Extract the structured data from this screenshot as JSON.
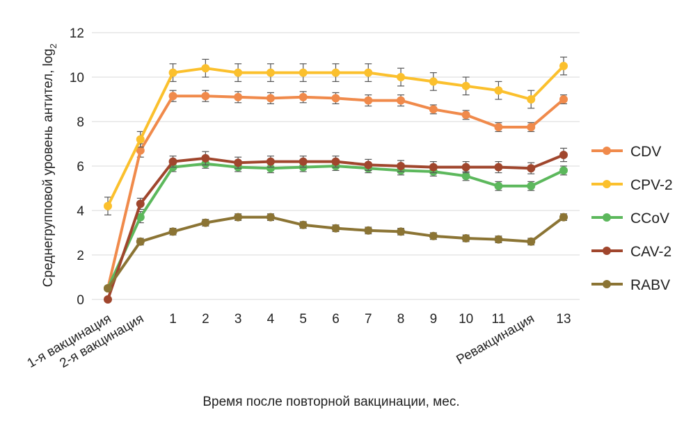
{
  "chart_data": {
    "type": "line",
    "title": "",
    "xlabel": "Время после повторной вакцинации, мес.",
    "ylabel": "Среднегрупповой уровень антител, log",
    "ylabel_sub": "2",
    "ylim": [
      0,
      12
    ],
    "yticks": [
      0,
      2,
      4,
      6,
      8,
      10,
      12
    ],
    "grid": true,
    "legend_position": "right",
    "categories": [
      "1-я вакцинация",
      "2-я вакцинация",
      "1",
      "2",
      "3",
      "4",
      "5",
      "6",
      "7",
      "8",
      "9",
      "10",
      "11",
      "Ревакцинация",
      "13"
    ],
    "series": [
      {
        "name": "CDV",
        "color": "#f08a4b",
        "values": [
          0.5,
          6.7,
          9.15,
          9.15,
          9.1,
          9.05,
          9.1,
          9.05,
          8.95,
          8.95,
          8.55,
          8.3,
          7.75,
          7.75,
          9.0
        ],
        "errors": [
          0.1,
          0.3,
          0.25,
          0.25,
          0.25,
          0.25,
          0.25,
          0.25,
          0.25,
          0.25,
          0.2,
          0.2,
          0.2,
          0.2,
          0.2
        ]
      },
      {
        "name": "CPV-2",
        "color": "#fbc02d",
        "values": [
          4.2,
          7.2,
          10.2,
          10.4,
          10.2,
          10.2,
          10.2,
          10.2,
          10.2,
          10.0,
          9.8,
          9.6,
          9.4,
          9.0,
          10.5
        ],
        "errors": [
          0.4,
          0.35,
          0.4,
          0.4,
          0.4,
          0.4,
          0.4,
          0.4,
          0.4,
          0.4,
          0.4,
          0.4,
          0.4,
          0.4,
          0.4
        ]
      },
      {
        "name": "CCoV",
        "color": "#5cb85c",
        "values": [
          0.5,
          3.7,
          5.95,
          6.1,
          5.95,
          5.9,
          5.95,
          6.0,
          5.9,
          5.8,
          5.75,
          5.55,
          5.1,
          5.1,
          5.8
        ],
        "errors": [
          0.1,
          0.25,
          0.2,
          0.2,
          0.2,
          0.2,
          0.2,
          0.2,
          0.2,
          0.2,
          0.2,
          0.2,
          0.2,
          0.2,
          0.2
        ]
      },
      {
        "name": "CAV-2",
        "color": "#a0462d",
        "values": [
          0.0,
          4.3,
          6.2,
          6.35,
          6.15,
          6.2,
          6.2,
          6.2,
          6.05,
          6.0,
          5.95,
          5.95,
          5.95,
          5.9,
          6.5
        ],
        "errors": [
          0.05,
          0.25,
          0.25,
          0.3,
          0.25,
          0.25,
          0.25,
          0.25,
          0.25,
          0.25,
          0.25,
          0.25,
          0.25,
          0.25,
          0.3
        ]
      },
      {
        "name": "RABV",
        "color": "#8b7434",
        "values": [
          0.5,
          2.6,
          3.05,
          3.45,
          3.7,
          3.7,
          3.35,
          3.2,
          3.1,
          3.05,
          2.85,
          2.75,
          2.7,
          2.6,
          3.7
        ],
        "errors": [
          0.05,
          0.15,
          0.15,
          0.15,
          0.15,
          0.15,
          0.15,
          0.15,
          0.15,
          0.15,
          0.15,
          0.15,
          0.15,
          0.15,
          0.15
        ]
      }
    ]
  }
}
